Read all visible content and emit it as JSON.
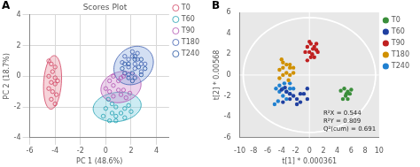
{
  "chart_data": [
    {
      "type": "scatter",
      "title": "Scores Plot",
      "xlabel": "PC 1 (48.6%)",
      "ylabel": "PC 2 (18.7%)",
      "xlim": [
        -6,
        5
      ],
      "ylim": [
        -4,
        4
      ],
      "xticks": [
        -6,
        -4,
        -2,
        0,
        2,
        4
      ],
      "yticks": [
        -4,
        -2,
        0,
        2,
        4
      ],
      "grid": true,
      "grid_color": "#d8d8d8",
      "background": "#ffffff",
      "legend": "right",
      "marker": "open_circle",
      "annotations": [
        {
          "text": "A"
        }
      ],
      "series": [
        {
          "name": "T0",
          "color": "#d04060",
          "values": [
            [
              -4.5,
              1.0
            ],
            [
              -4.3,
              0.8
            ],
            [
              -4.0,
              0.6
            ],
            [
              -4.2,
              0.3
            ],
            [
              -4.5,
              0.0
            ],
            [
              -4.0,
              -0.1
            ],
            [
              -4.3,
              -0.4
            ],
            [
              -4.0,
              -0.5
            ],
            [
              -3.8,
              -0.3
            ],
            [
              -4.5,
              -0.8
            ],
            [
              -4.2,
              -1.0
            ],
            [
              -3.9,
              -1.2
            ],
            [
              -4.3,
              -1.5
            ],
            [
              -4.0,
              -1.8
            ]
          ]
        },
        {
          "name": "T60",
          "color": "#20a0b0",
          "values": [
            [
              0.2,
              -1.5
            ],
            [
              0.5,
              -1.8
            ],
            [
              0.8,
              -2.0
            ],
            [
              0.0,
              -2.1
            ],
            [
              0.5,
              -2.4
            ],
            [
              0.8,
              -2.6
            ],
            [
              1.2,
              -2.4
            ],
            [
              1.5,
              -2.1
            ],
            [
              1.8,
              -1.9
            ],
            [
              -0.2,
              -2.6
            ],
            [
              0.3,
              -2.9
            ],
            [
              0.8,
              -2.9
            ],
            [
              1.5,
              -2.7
            ],
            [
              2.0,
              -2.3
            ]
          ]
        },
        {
          "name": "T90",
          "color": "#b050b0",
          "values": [
            [
              0.3,
              -1.0
            ],
            [
              0.6,
              -1.3
            ],
            [
              1.0,
              -0.9
            ],
            [
              1.2,
              -1.2
            ],
            [
              1.4,
              -0.9
            ],
            [
              0.6,
              -0.6
            ],
            [
              1.0,
              -0.3
            ],
            [
              1.2,
              -0.1
            ],
            [
              0.3,
              -0.3
            ],
            [
              0.6,
              0.0
            ],
            [
              1.6,
              -1.4
            ],
            [
              1.9,
              -1.1
            ],
            [
              1.4,
              0.0
            ],
            [
              0.0,
              -0.8
            ]
          ]
        },
        {
          "name": "T180",
          "color": "#4060b0",
          "values": [
            [
              1.8,
              1.1
            ],
            [
              2.1,
              1.3
            ],
            [
              2.3,
              0.8
            ],
            [
              2.5,
              1.1
            ],
            [
              1.8,
              0.6
            ],
            [
              2.3,
              0.5
            ],
            [
              2.8,
              0.8
            ],
            [
              2.1,
              1.6
            ],
            [
              2.5,
              1.5
            ],
            [
              1.3,
              0.9
            ],
            [
              1.5,
              1.3
            ],
            [
              2.8,
              0.3
            ],
            [
              3.1,
              0.8
            ],
            [
              1.8,
              0.1
            ]
          ]
        },
        {
          "name": "T240",
          "color": "#2050a0",
          "values": [
            [
              1.5,
              0.2
            ],
            [
              1.8,
              -0.1
            ],
            [
              2.1,
              0.2
            ],
            [
              2.3,
              -0.1
            ],
            [
              1.8,
              0.8
            ],
            [
              2.3,
              1.1
            ],
            [
              2.6,
              0.6
            ],
            [
              2.8,
              0.1
            ],
            [
              1.3,
              0.5
            ],
            [
              1.5,
              0.8
            ],
            [
              3.1,
              0.5
            ],
            [
              2.3,
              1.3
            ],
            [
              2.1,
              -0.3
            ],
            [
              2.8,
              1.1
            ]
          ]
        }
      ],
      "ellipses": [
        {
          "cx": -4.2,
          "cy": -0.4,
          "width": 1.4,
          "height": 3.5,
          "angle": -5,
          "face_color": "#e890a0",
          "color": "#d04060"
        },
        {
          "cx": 0.9,
          "cy": -2.0,
          "width": 3.8,
          "height": 1.9,
          "angle": 5,
          "face_color": "#80d0e0",
          "color": "#20a0b0"
        },
        {
          "cx": 1.2,
          "cy": -0.7,
          "width": 3.2,
          "height": 2.0,
          "angle": 10,
          "face_color": "#d090d0",
          "color": "#b050b0"
        },
        {
          "cx": 2.2,
          "cy": 0.7,
          "width": 3.2,
          "height": 2.4,
          "angle": 20,
          "face_color": "#90b0e0",
          "color": "#4060b0"
        }
      ]
    },
    {
      "type": "scatter",
      "xlabel": "t[1] * 0.000361",
      "ylabel": "t[2] * 0.00568",
      "xlim": [
        -10,
        10
      ],
      "ylim": [
        -6,
        6
      ],
      "xticks": [
        -10,
        -8,
        -6,
        -4,
        -2,
        0,
        2,
        4,
        6,
        8,
        10
      ],
      "yticks": [
        -6,
        -4,
        -2,
        0,
        2,
        4,
        6
      ],
      "grid": false,
      "background": "#e8e8e8",
      "legend": "right",
      "marker": "circle",
      "annotations": [
        {
          "text": "B"
        },
        {
          "text": "R²X = 0.544\nR²Y = 0.809\nQ²(cum) = 0.691",
          "x": 2.0,
          "y": -5.5
        }
      ],
      "crosshair": {
        "x": 0,
        "y": 0,
        "color": "#ffffff"
      },
      "ellipses": [
        {
          "cx": 0,
          "cy": 0,
          "width": 19.0,
          "height": 11.0,
          "color": "#ffffff"
        }
      ],
      "series": [
        {
          "name": "T0",
          "color": "#3a8e3a",
          "values": [
            [
              4.5,
              -1.5
            ],
            [
              5.0,
              -1.3
            ],
            [
              5.5,
              -1.6
            ],
            [
              5.2,
              -2.0
            ],
            [
              5.8,
              -1.8
            ],
            [
              6.0,
              -1.4
            ],
            [
              5.5,
              -2.3
            ],
            [
              4.8,
              -2.3
            ],
            [
              5.3,
              -1.8
            ]
          ]
        },
        {
          "name": "T60",
          "color": "#2040a0",
          "values": [
            [
              -1.8,
              -2.3
            ],
            [
              -1.3,
              -1.8
            ],
            [
              -0.8,
              -1.8
            ],
            [
              -0.3,
              -1.3
            ],
            [
              -2.3,
              -2.0
            ],
            [
              -2.8,
              -1.8
            ],
            [
              -3.3,
              -1.6
            ],
            [
              -1.8,
              -2.8
            ],
            [
              -1.3,
              -2.6
            ],
            [
              -0.3,
              -2.3
            ],
            [
              -2.8,
              -2.3
            ],
            [
              -3.8,
              -2.6
            ],
            [
              -4.0,
              -1.4
            ],
            [
              -3.5,
              -1.2
            ]
          ]
        },
        {
          "name": "T90",
          "color": "#c02020",
          "values": [
            [
              -0.3,
              2.7
            ],
            [
              0.2,
              3.0
            ],
            [
              0.7,
              2.7
            ],
            [
              0.0,
              2.2
            ],
            [
              1.0,
              2.4
            ],
            [
              0.4,
              2.0
            ],
            [
              1.2,
              2.2
            ],
            [
              -0.6,
              2.2
            ],
            [
              0.7,
              1.7
            ],
            [
              0.2,
              1.7
            ],
            [
              -0.3,
              1.4
            ],
            [
              1.0,
              3.0
            ],
            [
              0.0,
              3.2
            ],
            [
              0.5,
              2.5
            ]
          ]
        },
        {
          "name": "T180",
          "color": "#d09000",
          "values": [
            [
              -3.8,
              0.7
            ],
            [
              -3.3,
              1.0
            ],
            [
              -2.8,
              0.7
            ],
            [
              -4.3,
              0.5
            ],
            [
              -3.3,
              0.2
            ],
            [
              -2.8,
              0.0
            ],
            [
              -3.8,
              0.0
            ],
            [
              -4.3,
              -0.3
            ],
            [
              -2.8,
              1.0
            ],
            [
              -2.3,
              0.7
            ],
            [
              -2.3,
              0.2
            ],
            [
              -3.8,
              1.2
            ],
            [
              -3.0,
              -0.5
            ],
            [
              -4.0,
              1.5
            ]
          ]
        },
        {
          "name": "T240",
          "color": "#2080d0",
          "values": [
            [
              -3.8,
              -1.3
            ],
            [
              -3.3,
              -1.6
            ],
            [
              -2.8,
              -1.3
            ],
            [
              -4.3,
              -1.6
            ],
            [
              -2.8,
              -1.8
            ],
            [
              -4.3,
              -1.0
            ],
            [
              -3.6,
              -0.8
            ],
            [
              -2.8,
              -0.8
            ],
            [
              -3.8,
              -2.0
            ],
            [
              -3.3,
              -2.3
            ],
            [
              -2.3,
              -1.3
            ],
            [
              -4.8,
              -1.3
            ],
            [
              -5.0,
              -2.8
            ],
            [
              -4.5,
              -2.5
            ]
          ]
        }
      ]
    }
  ]
}
